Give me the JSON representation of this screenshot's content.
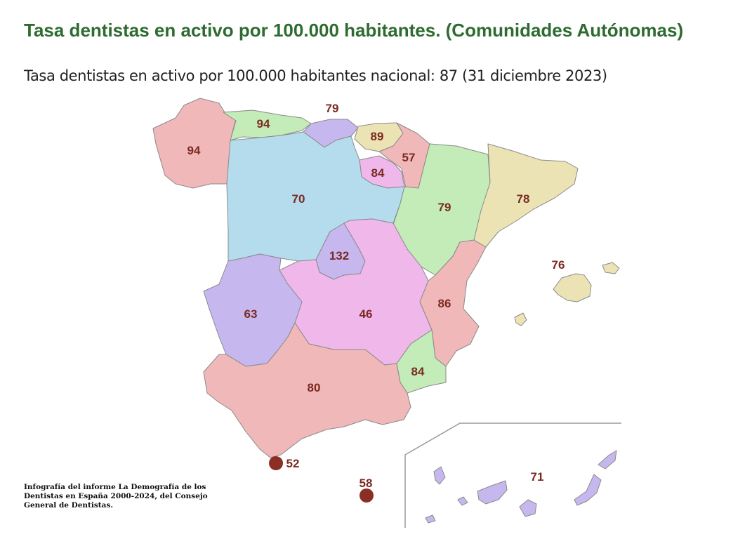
{
  "title": "Tasa dentistas en activo por 100.000 habitantes. (Comunidades Autónomas)",
  "subtitle": "Tasa dentistas en activo por 100.000 habitantes nacional: 87 (31 diciembre 2023)",
  "credit": "Infografía del informe La Demografía de los Dentistas en España 2000-2024, del Consejo General de Dentistas.",
  "colors": {
    "label": "#7b2a22",
    "pink": "#f0b8b8",
    "green": "#c3ecb8",
    "lavender": "#c6b8ee",
    "yellow": "#ece3b5",
    "blue": "#b5dced",
    "magenta": "#f0b8ea",
    "title": "#2e6b30"
  },
  "regions": {
    "galicia": "94",
    "asturias": "94",
    "cantabria": "79",
    "pais_vasco": "89",
    "navarra": "57",
    "la_rioja": "84",
    "castilla_leon": "70",
    "aragon": "79",
    "cataluna": "78",
    "madrid": "132",
    "castilla_la_mancha": "46",
    "extremadura": "63",
    "comunidad_valenciana": "86",
    "murcia": "84",
    "andalucia": "80",
    "baleares": "76",
    "ceuta": "52",
    "melilla": "58",
    "canarias": "71"
  }
}
